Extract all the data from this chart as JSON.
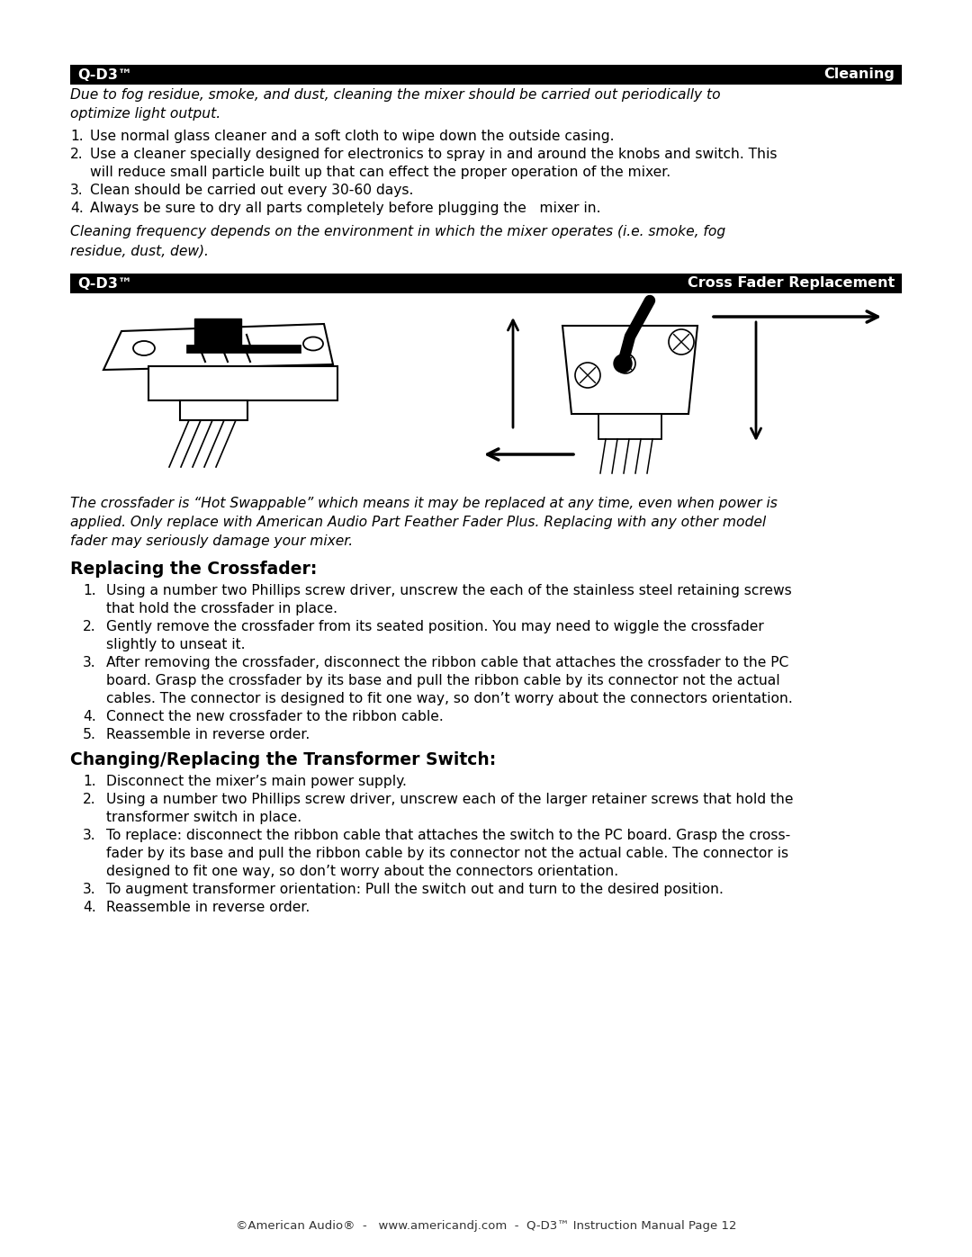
{
  "page_bg": "#ffffff",
  "header1_bg": "#000000",
  "header1_left": "Q-D3™",
  "header1_right": "Cleaning",
  "header1_text_color": "#ffffff",
  "header2_bg": "#000000",
  "header2_left": "Q-D3™",
  "header2_right": "Cross Fader Replacement",
  "header2_text_color": "#ffffff",
  "cleaning_intro": "Due to fog residue, smoke, and dust, cleaning the mixer should be carried out periodically to\noptimize light output.",
  "cleaning_items": [
    "Use normal glass cleaner and a soft cloth to wipe down the outside casing.",
    "Use a cleaner specially designed for electronics to spray in and around the knobs and switch. This\n    will reduce small particle built up that can effect the proper operation of the mixer.",
    "Clean should be carried out every 30-60 days.",
    "Always be sure to dry all parts completely before plugging the   mixer in."
  ],
  "cleaning_footer": "Cleaning frequency depends on the environment in which the mixer operates (i.e. smoke, fog\nresidue, dust, dew).",
  "crossfader_intro": "The crossfader is “Hot Swappable” which means it may be replaced at any time, even when power is\napplied. Only replace with American Audio Part Feather Fader Plus. Replacing with any other model\nfader may seriously damage your mixer.",
  "replacing_title": "Replacing the Crossfader:",
  "replacing_items": [
    "Using a number two Phillips screw driver, unscrew the each of the stainless steel retaining screws\nthat hold the crossfader in place.",
    "Gently remove the crossfader from its seated position. You may need to wiggle the crossfader\nslightly to unseat it.",
    "After removing the crossfader, disconnect the ribbon cable that attaches the crossfader to the PC\nboard. Grasp the crossfader by its base and pull the ribbon cable by its connector not the actual\ncables. The connector is designed to fit one way, so don’t worry about the connectors orientation.",
    "Connect the new crossfader to the ribbon cable.",
    "Reassemble in reverse order."
  ],
  "transformer_title": "Changing/Replacing the Transformer Switch:",
  "transformer_items": [
    "Disconnect the mixer’s main power supply.",
    "Using a number two Phillips screw driver, unscrew each of the larger retainer screws that hold the\ntransformer switch in place.",
    "To replace: disconnect the ribbon cable that attaches the switch to the PC board. Grasp the cross-\nfader by its base and pull the ribbon cable by its connector not the actual cable. The connector is\ndesigned to fit one way, so don’t worry about the connectors orientation.",
    "To augment transformer orientation: Pull the switch out and turn to the desired position.",
    "Reassemble in reverse order."
  ],
  "footer_text": "©American Audio®  -   www.americandj.com  -  Q-D3™ Instruction Manual Page 12",
  "lm": 0.075,
  "rm": 0.925,
  "fs_body": 11.2,
  "fs_hdr": 11.5,
  "fs_sec": 13.5,
  "tf_nums": [
    1,
    2,
    3,
    3,
    4
  ]
}
